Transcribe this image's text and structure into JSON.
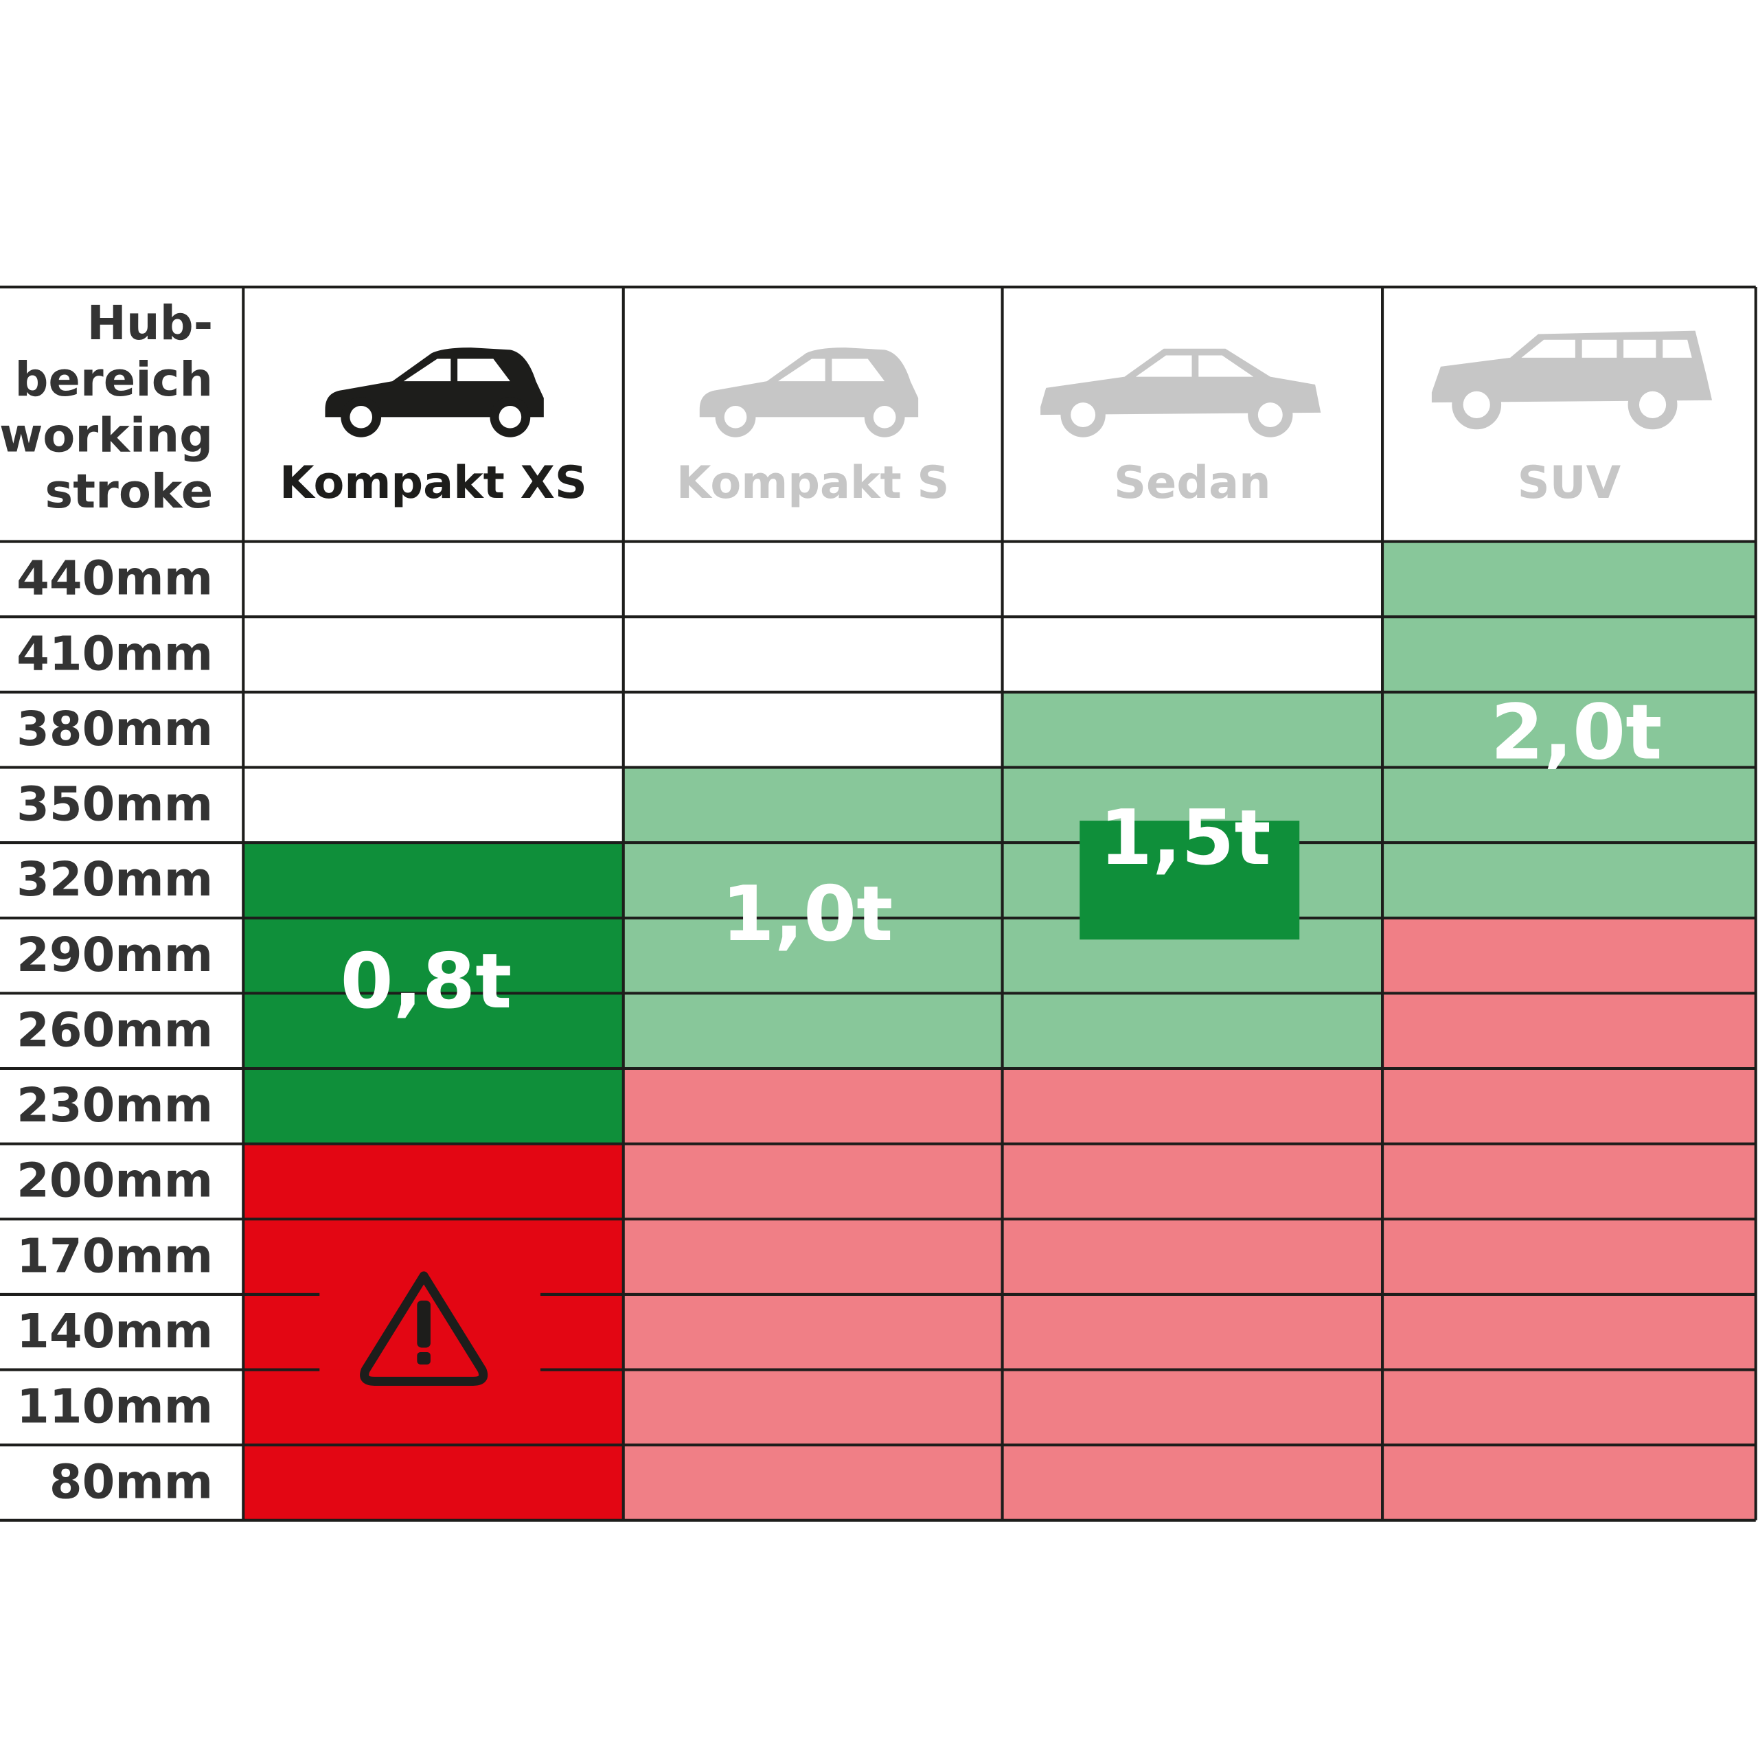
{
  "header": {
    "label": [
      "Hub-",
      "bereich",
      "working",
      "stroke"
    ]
  },
  "columns": [
    {
      "name": "Kompakt XS",
      "load": "0,8t"
    },
    {
      "name": "Kompakt S",
      "load": "1,0t"
    },
    {
      "name": "Sedan",
      "load": "1,5t"
    },
    {
      "name": "SUV",
      "load": "2,0t"
    }
  ],
  "rows": [
    "440mm",
    "410mm",
    "380mm",
    "350mm",
    "320mm",
    "290mm",
    "260mm",
    "230mm",
    "200mm",
    "170mm",
    "140mm",
    "110mm",
    "80mm"
  ]
}
